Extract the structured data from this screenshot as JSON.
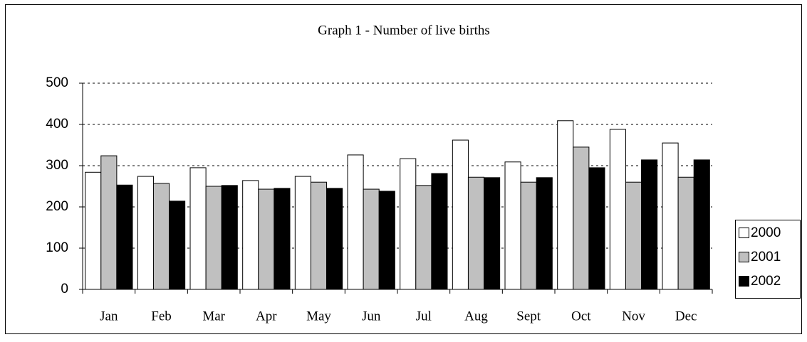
{
  "chart_data": {
    "type": "bar",
    "title": "Graph 1 - Number of live births",
    "categories": [
      "Jan",
      "Feb",
      "Mar",
      "Apr",
      "May",
      "Jun",
      "Jul",
      "Aug",
      "Sept",
      "Oct",
      "Nov",
      "Dec"
    ],
    "series": [
      {
        "name": "2000",
        "color": "#ffffff",
        "values": [
          284,
          274,
          295,
          264,
          274,
          326,
          317,
          362,
          309,
          409,
          388,
          355
        ]
      },
      {
        "name": "2001",
        "color": "#c0c0c0",
        "values": [
          324,
          257,
          250,
          243,
          260,
          243,
          252,
          272,
          260,
          345,
          260,
          272
        ]
      },
      {
        "name": "2002",
        "color": "#000000",
        "values": [
          253,
          214,
          252,
          245,
          245,
          238,
          281,
          271,
          271,
          295,
          314,
          314
        ]
      }
    ],
    "ylim": [
      0,
      500
    ],
    "yticks": [
      0,
      100,
      200,
      300,
      400,
      500
    ],
    "grid": true,
    "legend": "right"
  }
}
